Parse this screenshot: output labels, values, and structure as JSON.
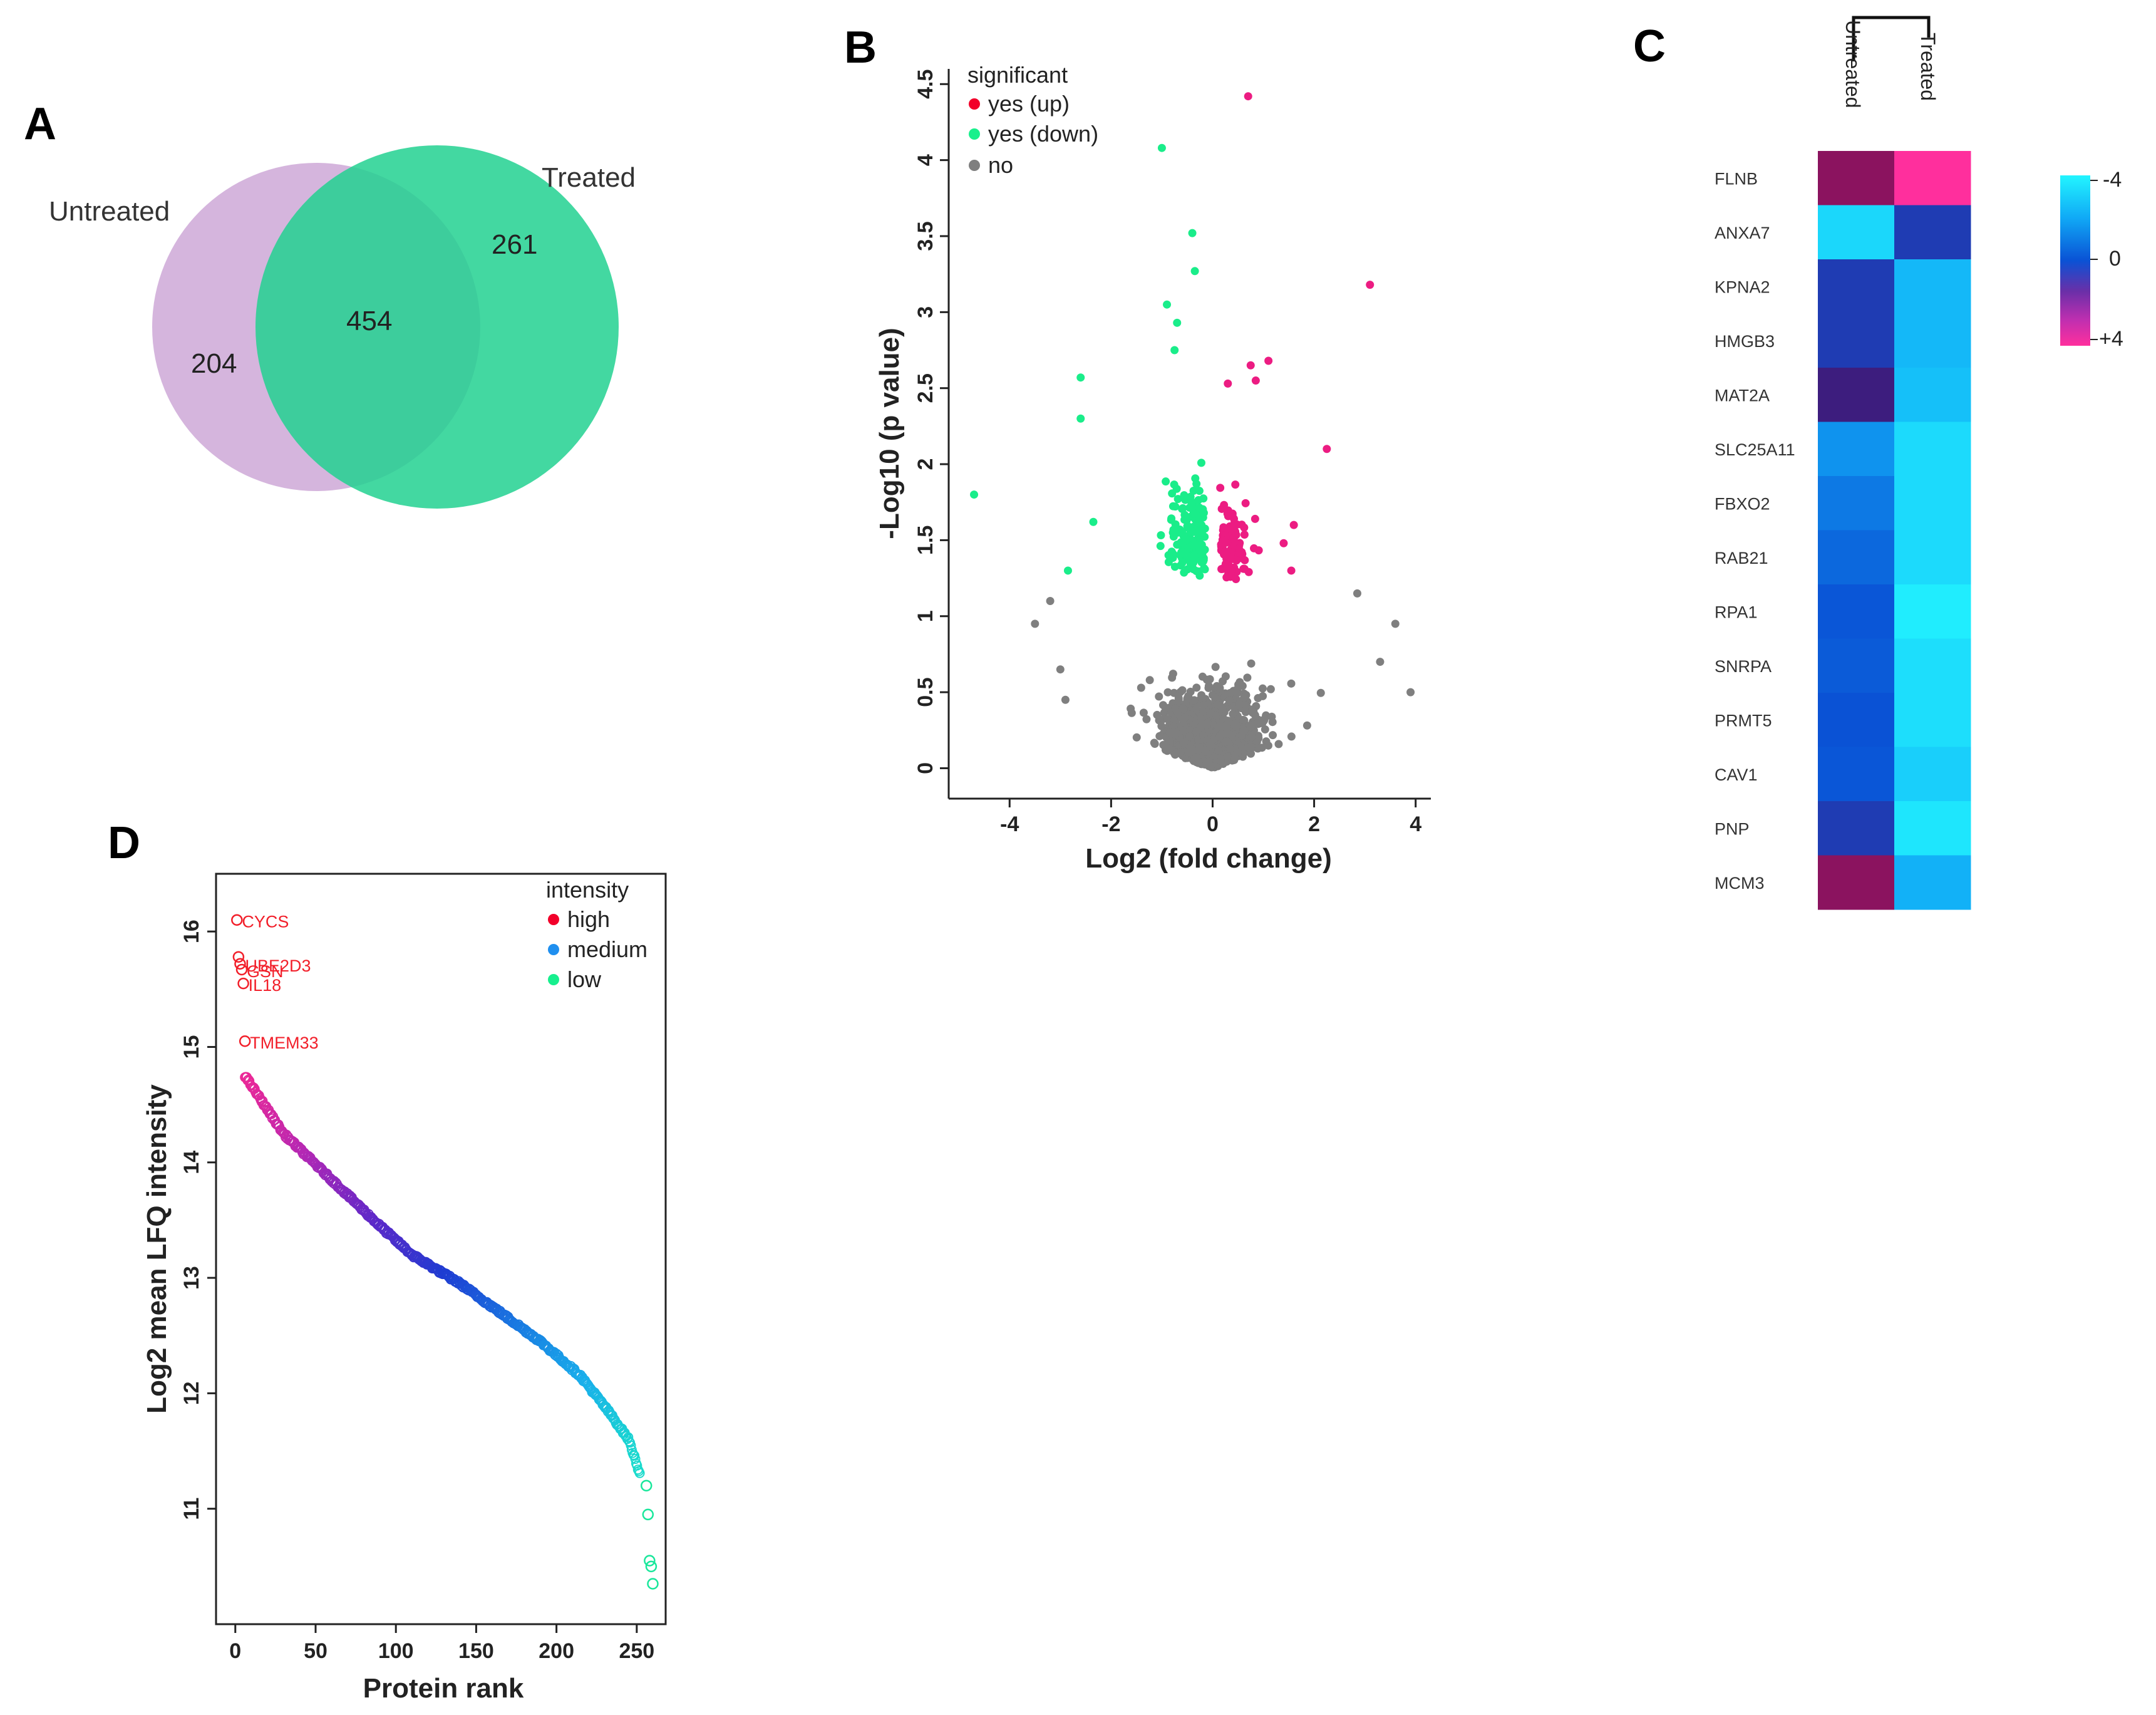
{
  "panels": {
    "A": "A",
    "B": "B",
    "C": "C",
    "D": "D"
  },
  "chart_data": [
    {
      "panel": "A",
      "type": "venn",
      "sets": [
        {
          "name": "Untreated",
          "color": "#c9a0d3"
        },
        {
          "name": "Treated",
          "color": "#3dd6a3"
        }
      ],
      "only_untreated": "204",
      "overlap": "454",
      "only_treated": "261"
    },
    {
      "panel": "B",
      "type": "scatter",
      "title": "",
      "xlabel": "Log2 (fold change)",
      "ylabel": "-Log10 (p value)",
      "xlim": [
        -5.2,
        4.3
      ],
      "ylim": [
        -0.2,
        4.6
      ],
      "xticks": [
        -4,
        -2,
        0,
        2,
        4
      ],
      "yticks": [
        0,
        0.5,
        1,
        1.5,
        2,
        2.5,
        3,
        3.5,
        4,
        4.5
      ],
      "xtick_labels": [
        "-4",
        "-2",
        "0",
        "2",
        "4"
      ],
      "ytick_labels": [
        "0",
        "0.5",
        "1",
        "1.5",
        "2",
        "2.5",
        "3",
        "3.5",
        "4",
        "4.5"
      ],
      "legend": {
        "title": "significant",
        "position": "top-left",
        "items": [
          {
            "label": "yes (up)",
            "color": "#f2002a"
          },
          {
            "label": "yes (down)",
            "color": "#18f08c"
          },
          {
            "label": "no",
            "color": "#7f7f7f"
          }
        ]
      },
      "colors": {
        "up": "#ec1c82",
        "down": "#1aed8a",
        "no": "#7f7f7f"
      },
      "highlighted_points": [
        {
          "group": "up",
          "x": 0.7,
          "y": 4.42
        },
        {
          "group": "up",
          "x": 3.1,
          "y": 3.18
        },
        {
          "group": "up",
          "x": 2.25,
          "y": 2.1
        },
        {
          "group": "up",
          "x": 0.3,
          "y": 2.53
        },
        {
          "group": "up",
          "x": 0.75,
          "y": 2.65
        },
        {
          "group": "up",
          "x": 1.1,
          "y": 2.68
        },
        {
          "group": "up",
          "x": 0.85,
          "y": 2.55
        },
        {
          "group": "up",
          "x": 1.6,
          "y": 1.6
        },
        {
          "group": "up",
          "x": 1.55,
          "y": 1.3
        },
        {
          "group": "up",
          "x": 1.4,
          "y": 1.48
        },
        {
          "group": "down",
          "x": -4.7,
          "y": 1.8
        },
        {
          "group": "down",
          "x": -1.0,
          "y": 4.08
        },
        {
          "group": "down",
          "x": -0.4,
          "y": 3.52
        },
        {
          "group": "down",
          "x": -0.35,
          "y": 3.27
        },
        {
          "group": "down",
          "x": -0.9,
          "y": 3.05
        },
        {
          "group": "down",
          "x": -0.7,
          "y": 2.93
        },
        {
          "group": "down",
          "x": -0.75,
          "y": 2.75
        },
        {
          "group": "down",
          "x": -2.6,
          "y": 2.57
        },
        {
          "group": "down",
          "x": -2.6,
          "y": 2.3
        },
        {
          "group": "down",
          "x": -2.85,
          "y": 1.3
        },
        {
          "group": "down",
          "x": -2.35,
          "y": 1.62
        }
      ],
      "cloud_summary": "dense clouds: up x 0.1..1.6 y 1.2..2.3; down x -2.3..-0.1 y 1.2..2.5; not significant x -3.5..3.9 y 0..1.2"
    },
    {
      "panel": "C",
      "type": "heatmap",
      "columns": [
        "Untreated",
        "Treated"
      ],
      "rows": [
        "FLNB",
        "ANXA7",
        "KPNA2",
        "HMGB3",
        "MAT2A",
        "SLC25A11",
        "FBXO2",
        "RAB21",
        "RPA1",
        "SNRPA",
        "PRMT5",
        "CAV1",
        "PNP",
        "MCM3"
      ],
      "values": [
        [
          2.8,
          4.0
        ],
        [
          -3.2,
          0.8
        ],
        [
          0.8,
          -2.4
        ],
        [
          0.8,
          -2.4
        ],
        [
          1.8,
          -2.6
        ],
        [
          -1.5,
          -3.3
        ],
        [
          -0.9,
          -3.3
        ],
        [
          -0.5,
          -3.3
        ],
        [
          -0.1,
          -3.8
        ],
        [
          -0.2,
          -3.4
        ],
        [
          0.0,
          -3.4
        ],
        [
          -0.1,
          -3.0
        ],
        [
          0.8,
          -3.6
        ],
        [
          2.8,
          -2.2
        ]
      ],
      "colorbar": {
        "ticks": [
          "-4",
          "0",
          "+4"
        ],
        "range": [
          -4,
          4
        ]
      }
    },
    {
      "panel": "D",
      "type": "scatter",
      "title": "",
      "xlabel": "Protein rank",
      "ylabel": "Log2 mean LFQ intensity",
      "xlim": [
        -12,
        268
      ],
      "ylim": [
        10.0,
        16.5
      ],
      "xticks": [
        0,
        50,
        100,
        150,
        200,
        250
      ],
      "yticks": [
        11,
        12,
        13,
        14,
        15,
        16
      ],
      "xtick_labels": [
        "0",
        "50",
        "100",
        "150",
        "200",
        "250"
      ],
      "ytick_labels": [
        "11",
        "12",
        "13",
        "14",
        "15",
        "16"
      ],
      "legend": {
        "title": "intensity",
        "position": "top-right",
        "items": [
          {
            "label": "high",
            "color": "#f2002a"
          },
          {
            "label": "medium",
            "color": "#1f8fef"
          },
          {
            "label": "low",
            "color": "#17ef8e"
          }
        ]
      },
      "curve_knots": [
        [
          6,
          14.75
        ],
        [
          30,
          14.25
        ],
        [
          60,
          13.85
        ],
        [
          90,
          13.45
        ],
        [
          110,
          13.2
        ],
        [
          140,
          12.95
        ],
        [
          165,
          12.7
        ],
        [
          190,
          12.45
        ],
        [
          215,
          12.15
        ],
        [
          232,
          11.85
        ],
        [
          245,
          11.6
        ],
        [
          252,
          11.3
        ]
      ],
      "outliers": [
        {
          "x": 1,
          "y": 16.1,
          "label": "CYCS"
        },
        {
          "x": 2,
          "y": 15.78,
          "label": ""
        },
        {
          "x": 3,
          "y": 15.72,
          "label": "UBE2D3"
        },
        {
          "x": 4,
          "y": 15.67,
          "label": "GSN"
        },
        {
          "x": 5,
          "y": 15.55,
          "label": "IL18"
        },
        {
          "x": 6,
          "y": 15.05,
          "label": "TMEM33"
        },
        {
          "x": 256,
          "y": 11.2,
          "label": ""
        },
        {
          "x": 257,
          "y": 10.95,
          "label": ""
        },
        {
          "x": 258,
          "y": 10.55,
          "label": ""
        },
        {
          "x": 259,
          "y": 10.5,
          "label": ""
        },
        {
          "x": 260,
          "y": 10.35,
          "label": ""
        }
      ]
    }
  ]
}
